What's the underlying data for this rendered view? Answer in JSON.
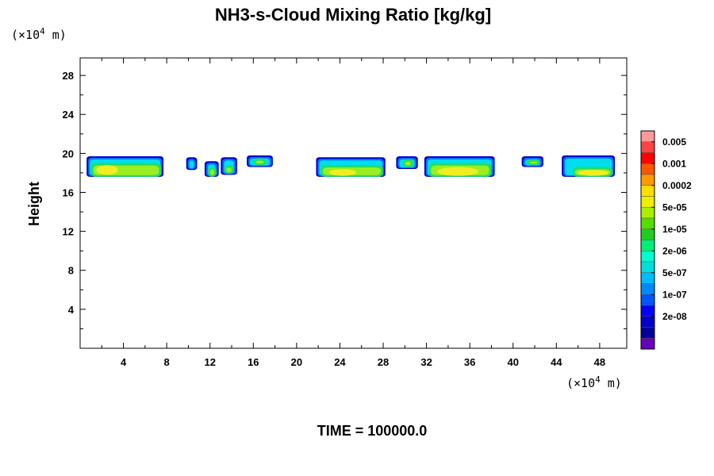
{
  "chart_data": {
    "type": "heatmap",
    "title": "NH3-s-Cloud Mixing Ratio [kg/kg]",
    "ylabel": "Height",
    "x_unit": "(×10",
    "x_unit_exp": "4",
    "x_unit_tail": " m)",
    "y_unit": "(×10",
    "y_unit_exp": "4",
    "y_unit_tail": " m)",
    "footer": "TIME = 100000.0",
    "xlim": [
      0,
      50.5
    ],
    "ylim": [
      0,
      29.8
    ],
    "xticks": [
      4,
      8,
      12,
      16,
      20,
      24,
      28,
      32,
      36,
      40,
      44,
      48
    ],
    "yticks": [
      4,
      8,
      12,
      16,
      20,
      24,
      28
    ],
    "grid": false,
    "colorbar": {
      "colors": [
        "#ff9999",
        "#ff4444",
        "#ff0000",
        "#ff5500",
        "#ff9900",
        "#ffdd00",
        "#eeee00",
        "#aaee00",
        "#55dd00",
        "#22cc22",
        "#00ee77",
        "#00ffcc",
        "#00dddd",
        "#00bbff",
        "#0088ff",
        "#0055ff",
        "#0000ff",
        "#0000cc",
        "#000099",
        "#6600bb"
      ],
      "labels": [
        "0.005",
        "0.001",
        "0.0002",
        "5e-05",
        "1e-05",
        "2e-06",
        "5e-07",
        "1e-07",
        "2e-08"
      ]
    },
    "cloud_cells": [
      {
        "x0": 0.6,
        "x1": 7.7,
        "y0": 17.6,
        "y1": 19.7,
        "core": [
          1.0,
          7.5,
          17.6,
          19.0
        ],
        "peak": [
          1.5,
          3.5,
          17.8,
          18.8
        ]
      },
      {
        "x0": 9.8,
        "x1": 10.8,
        "y0": 18.3,
        "y1": 19.6,
        "core": null,
        "peak": null
      },
      {
        "x0": 11.5,
        "x1": 12.8,
        "y0": 17.6,
        "y1": 19.2,
        "core": [
          11.8,
          12.6,
          17.6,
          18.6
        ],
        "peak": null
      },
      {
        "x0": 13.0,
        "x1": 14.5,
        "y0": 17.8,
        "y1": 19.6,
        "core": [
          13.3,
          14.2,
          17.9,
          18.8
        ],
        "peak": null
      },
      {
        "x0": 15.4,
        "x1": 17.8,
        "y0": 18.6,
        "y1": 19.8,
        "core": [
          16.0,
          17.2,
          18.8,
          19.5
        ],
        "peak": null
      },
      {
        "x0": 21.8,
        "x1": 28.2,
        "y0": 17.6,
        "y1": 19.6,
        "core": [
          22.2,
          28.0,
          17.6,
          18.8
        ],
        "peak": [
          23.0,
          25.5,
          17.7,
          18.4
        ]
      },
      {
        "x0": 29.2,
        "x1": 31.2,
        "y0": 18.4,
        "y1": 19.7,
        "core": [
          29.8,
          30.8,
          18.6,
          19.4
        ],
        "peak": null
      },
      {
        "x0": 31.8,
        "x1": 38.3,
        "y0": 17.6,
        "y1": 19.7,
        "core": [
          32.2,
          38.0,
          17.6,
          19.0
        ],
        "peak": [
          33.0,
          36.8,
          17.7,
          18.6
        ]
      },
      {
        "x0": 40.8,
        "x1": 42.8,
        "y0": 18.6,
        "y1": 19.7,
        "core": [
          41.3,
          42.5,
          18.8,
          19.4
        ],
        "peak": null
      },
      {
        "x0": 44.5,
        "x1": 49.4,
        "y0": 17.6,
        "y1": 19.8,
        "core": [
          45.5,
          49.2,
          17.6,
          18.6
        ],
        "peak": [
          46.0,
          48.8,
          17.7,
          18.3
        ]
      }
    ]
  }
}
